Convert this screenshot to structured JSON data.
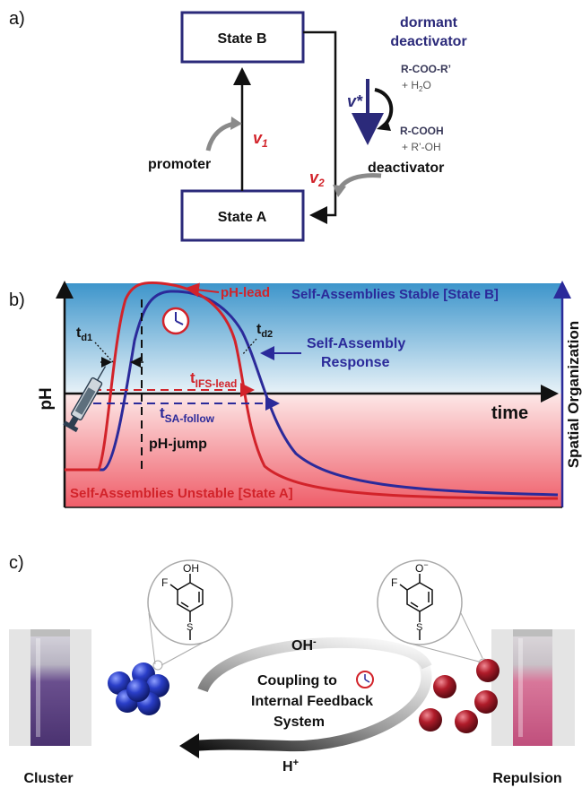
{
  "panel_a": {
    "label": "a)",
    "state_b": "State B",
    "state_a": "State A",
    "dormant_line1": "dormant",
    "dormant_line2": "deactivator",
    "ester": "R-COO-R’",
    "plus_water": "+ H",
    "water_sub": "2",
    "water_end": "O",
    "acid": "R-COOH",
    "alcohol": "+ R’-OH",
    "v_star": "v*",
    "v1": "v",
    "v1_sub": "1",
    "v2": "v",
    "v2_sub": "2",
    "promoter": "promoter",
    "deactivator": "deactivator",
    "colors": {
      "box": "#2b2a7a",
      "dormant": "#2b2a7a",
      "rate": "#d2232a",
      "chem": "#3a3a5a"
    }
  },
  "panel_b": {
    "label": "b)",
    "y_left": "pH",
    "y_right": "Spatial Organization",
    "x_axis": "time",
    "stable": "Self-Assemblies Stable [State B]",
    "unstable": "Self-Assemblies Unstable [State A]",
    "ph_lead": "pH-lead",
    "response_line1": "Self-Assembly",
    "response_line2": "Response",
    "td1": "t",
    "td1_sub": "d1",
    "td2": "t",
    "td2_sub": "d2",
    "t_ifs": "t",
    "t_ifs_sub": "IFS-lead",
    "t_sa": "t",
    "t_sa_sub": "SA-follow",
    "ph_jump": "pH-jump",
    "colors": {
      "ph": "#d2232a",
      "sa": "#2b2a9a",
      "top_bg": "#4a9fd0",
      "bottom_bg": "#f0707a"
    }
  },
  "panel_c": {
    "label": "c)",
    "oh": "OH",
    "oh_sup": "-",
    "h": "H",
    "h_sup": "+",
    "coupling_line1": "Coupling to",
    "coupling_line2": "Internal Feedback",
    "coupling_line3": "System",
    "cluster": "Cluster",
    "repulsion": "Repulsion",
    "mol_left_oh": "OH",
    "mol_right_o": "O",
    "mol_right_minus": "−",
    "mol_f": "F",
    "mol_s": "S",
    "colors": {
      "cluster": "#2a3ec8",
      "repulsion": "#b01c2a"
    }
  }
}
